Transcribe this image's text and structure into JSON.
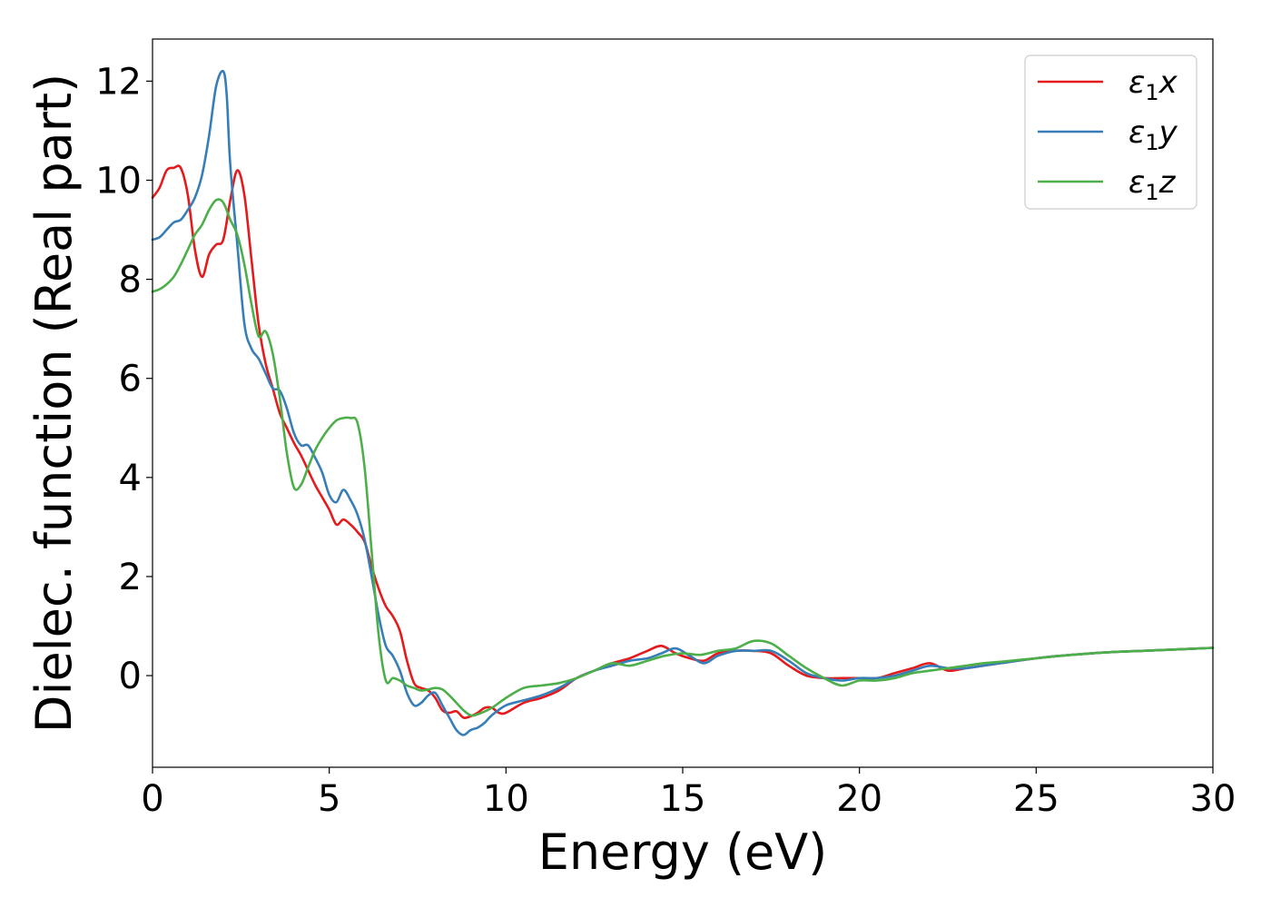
{
  "chart_data": {
    "type": "line",
    "title": "",
    "xlabel": "Energy (eV)",
    "ylabel": "Dielec. function (Real part)",
    "xlim": [
      0,
      30
    ],
    "ylim": [
      -1.85,
      12.85
    ],
    "xticks": [
      0,
      5,
      10,
      15,
      20,
      25,
      30
    ],
    "xtick_labels": [
      "0",
      "5",
      "10",
      "15",
      "20",
      "25",
      "30"
    ],
    "yticks": [
      0,
      2,
      4,
      6,
      8,
      10,
      12
    ],
    "ytick_labels": [
      "0",
      "2",
      "4",
      "6",
      "8",
      "10",
      "12"
    ],
    "grid": false,
    "legend_position": "top-right",
    "series": [
      {
        "name": "ε1x",
        "legend_base": "ε",
        "legend_sub": "1",
        "legend_suffix": "x",
        "color": "#e41a1c",
        "points": [
          [
            0,
            9.65
          ],
          [
            0.2,
            9.85
          ],
          [
            0.4,
            10.2
          ],
          [
            0.6,
            10.25
          ],
          [
            0.8,
            10.25
          ],
          [
            1.0,
            9.7
          ],
          [
            1.2,
            8.6
          ],
          [
            1.4,
            8.05
          ],
          [
            1.6,
            8.5
          ],
          [
            1.8,
            8.7
          ],
          [
            2.0,
            8.8
          ],
          [
            2.2,
            9.6
          ],
          [
            2.4,
            10.2
          ],
          [
            2.6,
            9.7
          ],
          [
            2.8,
            8.4
          ],
          [
            3.0,
            7.1
          ],
          [
            3.2,
            6.3
          ],
          [
            3.4,
            5.8
          ],
          [
            3.6,
            5.3
          ],
          [
            3.8,
            5.0
          ],
          [
            4.0,
            4.7
          ],
          [
            4.2,
            4.45
          ],
          [
            4.4,
            4.15
          ],
          [
            4.6,
            3.85
          ],
          [
            4.8,
            3.6
          ],
          [
            5.0,
            3.35
          ],
          [
            5.2,
            3.05
          ],
          [
            5.4,
            3.15
          ],
          [
            5.6,
            3.05
          ],
          [
            5.8,
            2.9
          ],
          [
            6.0,
            2.7
          ],
          [
            6.2,
            2.2
          ],
          [
            6.4,
            1.75
          ],
          [
            6.6,
            1.4
          ],
          [
            6.8,
            1.2
          ],
          [
            7.0,
            0.9
          ],
          [
            7.2,
            0.3
          ],
          [
            7.4,
            -0.15
          ],
          [
            7.6,
            -0.25
          ],
          [
            7.8,
            -0.3
          ],
          [
            8.0,
            -0.45
          ],
          [
            8.2,
            -0.7
          ],
          [
            8.4,
            -0.75
          ],
          [
            8.6,
            -0.72
          ],
          [
            8.8,
            -0.85
          ],
          [
            9.0,
            -0.82
          ],
          [
            9.2,
            -0.75
          ],
          [
            9.4,
            -0.65
          ],
          [
            9.6,
            -0.65
          ],
          [
            9.8,
            -0.75
          ],
          [
            10.0,
            -0.75
          ],
          [
            10.5,
            -0.55
          ],
          [
            11.0,
            -0.45
          ],
          [
            11.5,
            -0.3
          ],
          [
            12.0,
            -0.05
          ],
          [
            12.5,
            0.1
          ],
          [
            13.0,
            0.25
          ],
          [
            13.5,
            0.35
          ],
          [
            14.0,
            0.5
          ],
          [
            14.4,
            0.6
          ],
          [
            14.8,
            0.45
          ],
          [
            15.2,
            0.35
          ],
          [
            15.6,
            0.3
          ],
          [
            16.0,
            0.45
          ],
          [
            16.5,
            0.5
          ],
          [
            17.0,
            0.5
          ],
          [
            17.5,
            0.45
          ],
          [
            18.0,
            0.2
          ],
          [
            18.5,
            0.0
          ],
          [
            19.0,
            -0.05
          ],
          [
            19.5,
            -0.05
          ],
          [
            20.0,
            -0.05
          ],
          [
            20.5,
            -0.05
          ],
          [
            21.0,
            0.05
          ],
          [
            21.5,
            0.15
          ],
          [
            22.0,
            0.25
          ],
          [
            22.5,
            0.1
          ],
          [
            23.0,
            0.15
          ],
          [
            23.5,
            0.2
          ],
          [
            24.0,
            0.25
          ],
          [
            25.0,
            0.35
          ],
          [
            26.0,
            0.42
          ],
          [
            27.0,
            0.47
          ],
          [
            28.0,
            0.5
          ],
          [
            29.0,
            0.53
          ],
          [
            30.0,
            0.56
          ]
        ]
      },
      {
        "name": "ε1y",
        "legend_base": "ε",
        "legend_sub": "1",
        "legend_suffix": "y",
        "color": "#377eb8",
        "points": [
          [
            0,
            8.8
          ],
          [
            0.2,
            8.85
          ],
          [
            0.4,
            9.0
          ],
          [
            0.6,
            9.15
          ],
          [
            0.8,
            9.2
          ],
          [
            1.0,
            9.4
          ],
          [
            1.2,
            9.65
          ],
          [
            1.4,
            10.1
          ],
          [
            1.6,
            10.9
          ],
          [
            1.8,
            11.9
          ],
          [
            2.0,
            12.2
          ],
          [
            2.1,
            11.7
          ],
          [
            2.2,
            10.3
          ],
          [
            2.4,
            8.7
          ],
          [
            2.6,
            7.1
          ],
          [
            2.8,
            6.6
          ],
          [
            3.0,
            6.4
          ],
          [
            3.2,
            6.1
          ],
          [
            3.4,
            5.8
          ],
          [
            3.6,
            5.75
          ],
          [
            3.8,
            5.4
          ],
          [
            4.0,
            4.9
          ],
          [
            4.2,
            4.65
          ],
          [
            4.4,
            4.65
          ],
          [
            4.6,
            4.4
          ],
          [
            4.8,
            4.1
          ],
          [
            5.0,
            3.65
          ],
          [
            5.2,
            3.5
          ],
          [
            5.4,
            3.75
          ],
          [
            5.6,
            3.55
          ],
          [
            5.8,
            3.25
          ],
          [
            6.0,
            2.75
          ],
          [
            6.2,
            2.0
          ],
          [
            6.4,
            1.2
          ],
          [
            6.6,
            0.6
          ],
          [
            6.8,
            0.4
          ],
          [
            7.0,
            0.1
          ],
          [
            7.2,
            -0.35
          ],
          [
            7.4,
            -0.6
          ],
          [
            7.6,
            -0.55
          ],
          [
            7.8,
            -0.4
          ],
          [
            8.0,
            -0.35
          ],
          [
            8.2,
            -0.6
          ],
          [
            8.4,
            -0.85
          ],
          [
            8.6,
            -1.1
          ],
          [
            8.8,
            -1.2
          ],
          [
            9.0,
            -1.1
          ],
          [
            9.2,
            -1.05
          ],
          [
            9.4,
            -0.95
          ],
          [
            9.6,
            -0.8
          ],
          [
            10.0,
            -0.6
          ],
          [
            10.5,
            -0.5
          ],
          [
            11.0,
            -0.4
          ],
          [
            11.5,
            -0.25
          ],
          [
            12.0,
            -0.05
          ],
          [
            12.5,
            0.1
          ],
          [
            13.0,
            0.2
          ],
          [
            13.5,
            0.3
          ],
          [
            14.0,
            0.35
          ],
          [
            14.4,
            0.45
          ],
          [
            14.8,
            0.55
          ],
          [
            15.2,
            0.4
          ],
          [
            15.6,
            0.25
          ],
          [
            16.0,
            0.4
          ],
          [
            16.5,
            0.5
          ],
          [
            17.0,
            0.5
          ],
          [
            17.5,
            0.5
          ],
          [
            18.0,
            0.3
          ],
          [
            18.5,
            0.05
          ],
          [
            19.0,
            -0.05
          ],
          [
            19.5,
            -0.1
          ],
          [
            20.0,
            -0.05
          ],
          [
            20.5,
            -0.05
          ],
          [
            21.0,
            0.0
          ],
          [
            21.5,
            0.1
          ],
          [
            22.0,
            0.2
          ],
          [
            22.5,
            0.15
          ],
          [
            23.0,
            0.15
          ],
          [
            23.5,
            0.2
          ],
          [
            24.0,
            0.25
          ],
          [
            25.0,
            0.35
          ],
          [
            26.0,
            0.42
          ],
          [
            27.0,
            0.47
          ],
          [
            28.0,
            0.5
          ],
          [
            29.0,
            0.53
          ],
          [
            30.0,
            0.56
          ]
        ]
      },
      {
        "name": "ε1z",
        "legend_base": "ε",
        "legend_sub": "1",
        "legend_suffix": "z",
        "color": "#4daf4a",
        "points": [
          [
            0,
            7.75
          ],
          [
            0.2,
            7.8
          ],
          [
            0.4,
            7.9
          ],
          [
            0.6,
            8.05
          ],
          [
            0.8,
            8.3
          ],
          [
            1.0,
            8.6
          ],
          [
            1.2,
            8.9
          ],
          [
            1.4,
            9.1
          ],
          [
            1.6,
            9.4
          ],
          [
            1.8,
            9.6
          ],
          [
            2.0,
            9.55
          ],
          [
            2.2,
            9.2
          ],
          [
            2.4,
            8.9
          ],
          [
            2.6,
            8.3
          ],
          [
            2.8,
            7.5
          ],
          [
            3.0,
            6.85
          ],
          [
            3.2,
            6.95
          ],
          [
            3.4,
            6.5
          ],
          [
            3.6,
            5.6
          ],
          [
            3.8,
            4.5
          ],
          [
            4.0,
            3.8
          ],
          [
            4.2,
            3.85
          ],
          [
            4.4,
            4.2
          ],
          [
            4.6,
            4.55
          ],
          [
            4.8,
            4.8
          ],
          [
            5.0,
            5.0
          ],
          [
            5.2,
            5.15
          ],
          [
            5.4,
            5.2
          ],
          [
            5.6,
            5.2
          ],
          [
            5.8,
            5.1
          ],
          [
            6.0,
            4.2
          ],
          [
            6.2,
            2.5
          ],
          [
            6.4,
            0.8
          ],
          [
            6.6,
            -0.1
          ],
          [
            6.8,
            -0.05
          ],
          [
            7.0,
            -0.1
          ],
          [
            7.2,
            -0.2
          ],
          [
            7.4,
            -0.25
          ],
          [
            7.6,
            -0.3
          ],
          [
            7.8,
            -0.28
          ],
          [
            8.0,
            -0.25
          ],
          [
            8.2,
            -0.28
          ],
          [
            8.4,
            -0.4
          ],
          [
            8.6,
            -0.55
          ],
          [
            8.8,
            -0.7
          ],
          [
            9.0,
            -0.8
          ],
          [
            9.2,
            -0.78
          ],
          [
            9.6,
            -0.65
          ],
          [
            10.0,
            -0.45
          ],
          [
            10.5,
            -0.25
          ],
          [
            11.0,
            -0.2
          ],
          [
            11.5,
            -0.15
          ],
          [
            12.0,
            -0.05
          ],
          [
            12.5,
            0.1
          ],
          [
            13.0,
            0.25
          ],
          [
            13.5,
            0.2
          ],
          [
            14.0,
            0.3
          ],
          [
            14.5,
            0.4
          ],
          [
            15.0,
            0.45
          ],
          [
            15.5,
            0.42
          ],
          [
            16.0,
            0.5
          ],
          [
            16.5,
            0.55
          ],
          [
            17.0,
            0.7
          ],
          [
            17.5,
            0.65
          ],
          [
            18.0,
            0.4
          ],
          [
            18.5,
            0.15
          ],
          [
            19.0,
            -0.05
          ],
          [
            19.5,
            -0.2
          ],
          [
            20.0,
            -0.1
          ],
          [
            20.5,
            -0.1
          ],
          [
            21.0,
            -0.05
          ],
          [
            21.5,
            0.05
          ],
          [
            22.0,
            0.1
          ],
          [
            22.5,
            0.15
          ],
          [
            23.0,
            0.2
          ],
          [
            23.5,
            0.25
          ],
          [
            24.0,
            0.28
          ],
          [
            25.0,
            0.35
          ],
          [
            26.0,
            0.42
          ],
          [
            27.0,
            0.47
          ],
          [
            28.0,
            0.5
          ],
          [
            29.0,
            0.53
          ],
          [
            30.0,
            0.56
          ]
        ]
      }
    ]
  }
}
